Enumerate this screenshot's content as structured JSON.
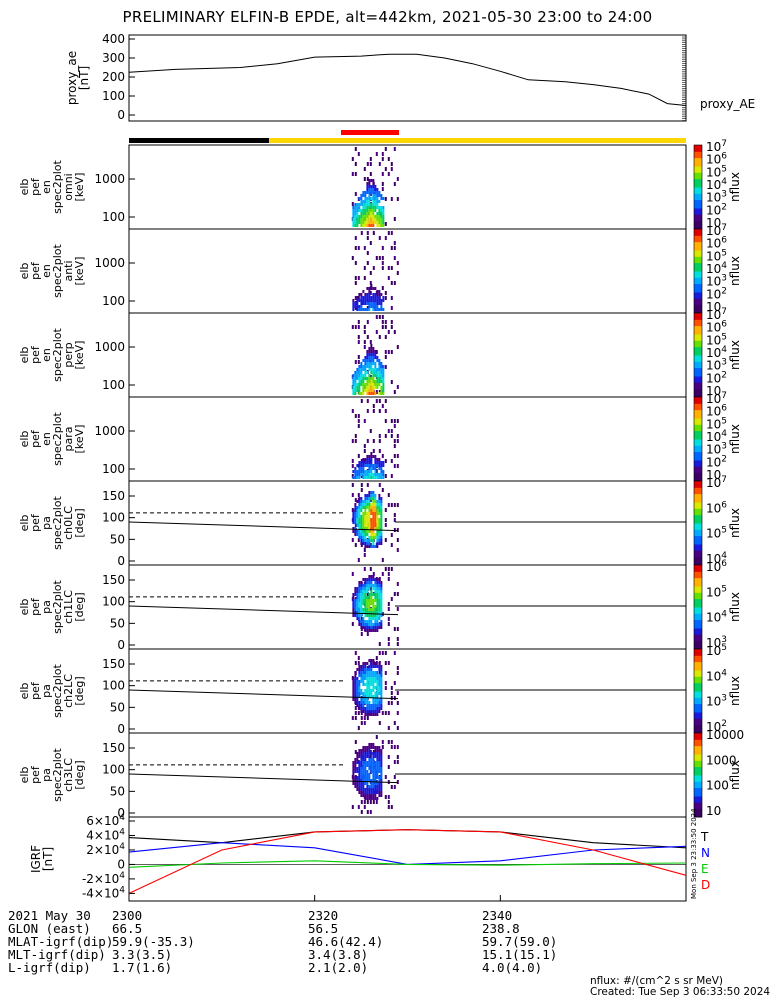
{
  "title": "PRELIMINARY ELFIN-B EPDE, alt=442km, 2021-05-30 23:00 to 24:00",
  "colors": {
    "bar_black": "#000000",
    "bar_yellow": "#ffd700",
    "bar_red": "#ff0000",
    "grf_T": "#000000",
    "grf_N": "#0000ff",
    "grf_E": "#00cc00",
    "grf_D": "#ff0000",
    "spectrogram_map": "rainbow (dark purple to blue to cyan to green to yellow to red)"
  },
  "chart_data": [
    {
      "type": "line",
      "ylabel": "proxy_ae\n[nT]",
      "series": [
        {
          "name": "proxy_AE",
          "x": [
            2300,
            2305,
            2312,
            2316,
            2320,
            2325,
            2328,
            2331,
            2334,
            2337,
            2340,
            2343,
            2345,
            2347,
            2350,
            2353,
            2356,
            2358,
            2360
          ],
          "values": [
            225,
            240,
            250,
            270,
            305,
            310,
            320,
            320,
            300,
            270,
            230,
            185,
            180,
            175,
            160,
            140,
            110,
            60,
            50
          ]
        }
      ],
      "ylim": [
        0,
        400
      ],
      "yticks": [
        "0",
        "100",
        "200",
        "300",
        "400"
      ]
    },
    {
      "type": "heatmap",
      "name": "spec2plot_omni",
      "ylabel": "elb\npef\nen\nspec2plot\nomni\n[keV]",
      "yscale": "log",
      "yticks": [
        "100",
        "1000"
      ],
      "zlabel": "nflux",
      "zticks": [
        "10",
        "10^2",
        "10^3",
        "10^4",
        "10^5",
        "10^6",
        "10^7"
      ],
      "activity_x_range": [
        2324,
        2329
      ],
      "peak": {
        "x": 2326,
        "energy_kev": 100,
        "level": "10^6"
      }
    },
    {
      "type": "heatmap",
      "name": "spec2plot_anti",
      "ylabel": "elb\npef\nen\nspec2plot\nanti\n[keV]",
      "yscale": "log",
      "yticks": [
        "100",
        "1000"
      ],
      "zlabel": "nflux",
      "zticks": [
        "10",
        "10^2",
        "10^3",
        "10^4",
        "10^5",
        "10^6",
        "10^7"
      ],
      "activity_x_range": [
        2324,
        2329
      ],
      "peak": {
        "x": 2326,
        "energy_kev": 100,
        "level": "10^4"
      }
    },
    {
      "type": "heatmap",
      "name": "spec2plot_perp",
      "ylabel": "elb\npef\nen\nspec2plot\nperp\n[keV]",
      "yscale": "log",
      "yticks": [
        "100",
        "1000"
      ],
      "zlabel": "nflux",
      "zticks": [
        "10",
        "10^2",
        "10^3",
        "10^4",
        "10^5",
        "10^6",
        "10^7"
      ],
      "activity_x_range": [
        2324,
        2329
      ],
      "peak": {
        "x": 2326,
        "energy_kev": 100,
        "level": "10^6"
      }
    },
    {
      "type": "heatmap",
      "name": "spec2plot_para",
      "ylabel": "elb\npef\nen\nspec2plot\npara\n[keV]",
      "yscale": "log",
      "yticks": [
        "100",
        "1000"
      ],
      "zlabel": "nflux",
      "zticks": [
        "10",
        "10^2",
        "10^3",
        "10^4",
        "10^5",
        "10^6",
        "10^7"
      ],
      "activity_x_range": [
        2324,
        2329
      ],
      "peak": {
        "x": 2326,
        "energy_kev": 100,
        "level": "10^5"
      }
    },
    {
      "type": "heatmap",
      "name": "spec2plot_ch0LC",
      "ylabel": "elb\npef\npa\nspec2plot\nch0LC\n[deg]",
      "ylim": [
        0,
        180
      ],
      "yticks": [
        "0",
        "50",
        "100",
        "150"
      ],
      "zlabel": "nflux",
      "zticks": [
        "10^4",
        "10^5",
        "10^6",
        "10^7"
      ],
      "loss_cone_dashed_deg": 111,
      "ninety_deg_line": 90,
      "sloped_line_deg": [
        90,
        70
      ],
      "activity_x_range": [
        2324,
        2329
      ]
    },
    {
      "type": "heatmap",
      "name": "spec2plot_ch1LC",
      "ylabel": "elb\npef\npa\nspec2plot\nch1LC\n[deg]",
      "ylim": [
        0,
        180
      ],
      "yticks": [
        "0",
        "50",
        "100",
        "150"
      ],
      "zlabel": "nflux",
      "zticks": [
        "10^3",
        "10^4",
        "10^5",
        "10^6"
      ],
      "loss_cone_dashed_deg": 111,
      "ninety_deg_line": 90,
      "sloped_line_deg": [
        90,
        70
      ],
      "activity_x_range": [
        2324,
        2329
      ]
    },
    {
      "type": "heatmap",
      "name": "spec2plot_ch2LC",
      "ylabel": "elb\npef\npa\nspec2plot\nch2LC\n[deg]",
      "ylim": [
        0,
        180
      ],
      "yticks": [
        "0",
        "50",
        "100",
        "150"
      ],
      "zlabel": "nflux",
      "zticks": [
        "10^2",
        "10^3",
        "10^4",
        "10^5"
      ],
      "loss_cone_dashed_deg": 111,
      "ninety_deg_line": 90,
      "sloped_line_deg": [
        90,
        70
      ],
      "activity_x_range": [
        2324,
        2329
      ]
    },
    {
      "type": "heatmap",
      "name": "spec2plot_ch3LC",
      "ylabel": "elb\npef\npa\nspec2plot\nch3LC\n[deg]",
      "ylim": [
        0,
        180
      ],
      "yticks": [
        "0",
        "50",
        "100",
        "150"
      ],
      "zlabel": "nflux",
      "zticks": [
        "10",
        "100",
        "1000",
        "10000"
      ],
      "loss_cone_dashed_deg": 111,
      "ninety_deg_line": 90,
      "sloped_line_deg": [
        90,
        70
      ],
      "activity_x_range": [
        2324,
        2329
      ]
    },
    {
      "type": "line",
      "ylabel": "IGRF\n[nT]",
      "ylim": [
        -45000,
        60000
      ],
      "yticks": [
        "-4×10^4",
        "-2×10^4",
        "0",
        "2×10^4",
        "4×10^4",
        "6×10^4"
      ],
      "series": [
        {
          "name": "T",
          "x": [
            2300,
            2310,
            2320,
            2330,
            2340,
            2350,
            2360
          ],
          "values": [
            37000,
            30000,
            45000,
            48000,
            45000,
            30000,
            23000
          ]
        },
        {
          "name": "N",
          "x": [
            2300,
            2310,
            2320,
            2330,
            2340,
            2350,
            2360
          ],
          "values": [
            17000,
            30000,
            23000,
            0,
            5000,
            20000,
            25000
          ]
        },
        {
          "name": "E",
          "x": [
            2300,
            2310,
            2320,
            2330,
            2340,
            2350,
            2360
          ],
          "values": [
            -4000,
            2000,
            5000,
            0,
            -1000,
            1000,
            2000
          ]
        },
        {
          "name": "D",
          "x": [
            2300,
            2310,
            2320,
            2330,
            2340,
            2350,
            2360
          ],
          "values": [
            -40000,
            20000,
            45000,
            48000,
            45000,
            20000,
            -15000
          ]
        }
      ],
      "side_text": "Mon Sep  3 23:33:50 2024"
    }
  ],
  "footer": {
    "rows": [
      {
        "label": "2021 May 30",
        "v1": "2300",
        "v2": "2320",
        "v3": "2340"
      },
      {
        "label": "GLON (east)",
        "v1": "66.5",
        "v2": "56.5",
        "v3": "238.8"
      },
      {
        "label": "MLAT-igrf(dip)",
        "v1": "59.9(-35.3)",
        "v2": "46.6(42.4)",
        "v3": "59.7(59.0)"
      },
      {
        "label": "MLT-igrf(dip)",
        "v1": "3.3(3.5)",
        "v2": "3.4(3.8)",
        "v3": "15.1(15.1)"
      },
      {
        "label": "L-igrf(dip)",
        "v1": "1.7(1.6)",
        "v2": "2.1(2.0)",
        "v3": "4.0(4.0)"
      }
    ],
    "units": "nflux: #/(cm^2 s sr MeV)",
    "created": "Created: Tue Sep  3 06:33:50 2024"
  }
}
